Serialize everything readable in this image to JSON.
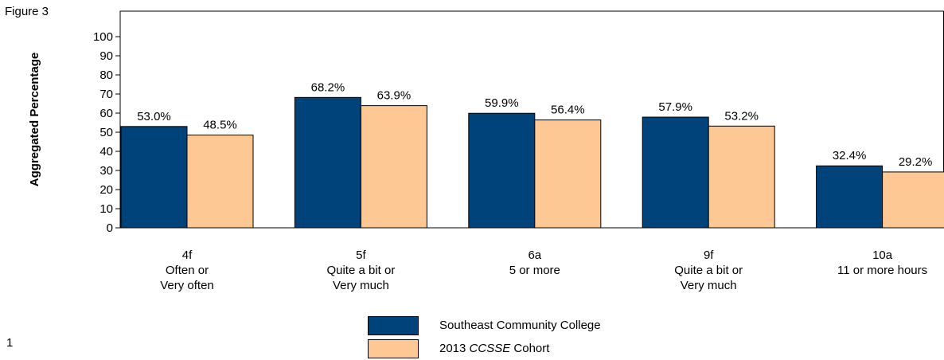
{
  "figure_label": "Figure 3",
  "page_number": "1",
  "colors": {
    "series1": "#00427a",
    "series2": "#fec894",
    "axis": "#000000"
  },
  "chart_data": {
    "type": "bar",
    "ylabel": "Aggregated Percentage",
    "ylim": [
      0,
      100
    ],
    "yticks": [
      0,
      10,
      20,
      30,
      40,
      50,
      60,
      70,
      80,
      90,
      100
    ],
    "grid": false,
    "legend_position": "bottom-center",
    "categories": [
      {
        "lines": [
          "4f",
          "Often or",
          "Very often"
        ]
      },
      {
        "lines": [
          "5f",
          "Quite a bit or",
          "Very much"
        ]
      },
      {
        "lines": [
          "6a",
          "5 or more"
        ]
      },
      {
        "lines": [
          "9f",
          "Quite a bit or",
          "Very much"
        ]
      },
      {
        "lines": [
          "10a",
          "11 or more hours"
        ]
      }
    ],
    "series": [
      {
        "name": "Southeast Community College",
        "values": [
          53.0,
          68.2,
          59.9,
          57.9,
          32.4
        ],
        "labels": [
          "53.0%",
          "68.2%",
          "59.9%",
          "57.9%",
          "32.4%"
        ]
      },
      {
        "name": "2013 CCSSE Cohort",
        "name_parts": {
          "prefix": "2013 ",
          "italic": "CCSSE",
          "suffix": " Cohort"
        },
        "values": [
          48.5,
          63.9,
          56.4,
          53.2,
          29.2
        ],
        "labels": [
          "48.5%",
          "63.9%",
          "56.4%",
          "53.2%",
          "29.2%"
        ]
      }
    ]
  }
}
